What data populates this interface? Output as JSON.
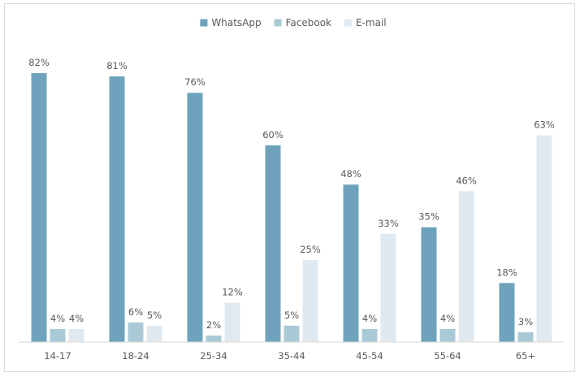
{
  "chart_data": {
    "type": "bar",
    "title": "",
    "xlabel": "",
    "ylabel": "",
    "categories": [
      "14-17",
      "18-24",
      "25-34",
      "35-44",
      "45-54",
      "55-64",
      "65+"
    ],
    "series": [
      {
        "name": "WhatsApp",
        "color": "#6fa3bd",
        "values": [
          82,
          81,
          76,
          60,
          48,
          35,
          18
        ]
      },
      {
        "name": "Facebook",
        "color": "#a9c9d6",
        "values": [
          4,
          6,
          2,
          5,
          4,
          4,
          3
        ]
      },
      {
        "name": "E-mail",
        "color": "#e0e9f0",
        "values": [
          4,
          5,
          12,
          25,
          33,
          46,
          63
        ]
      }
    ],
    "value_suffix": "%",
    "ylim": [
      0,
      82
    ],
    "grid": false,
    "legend": "top-center"
  }
}
